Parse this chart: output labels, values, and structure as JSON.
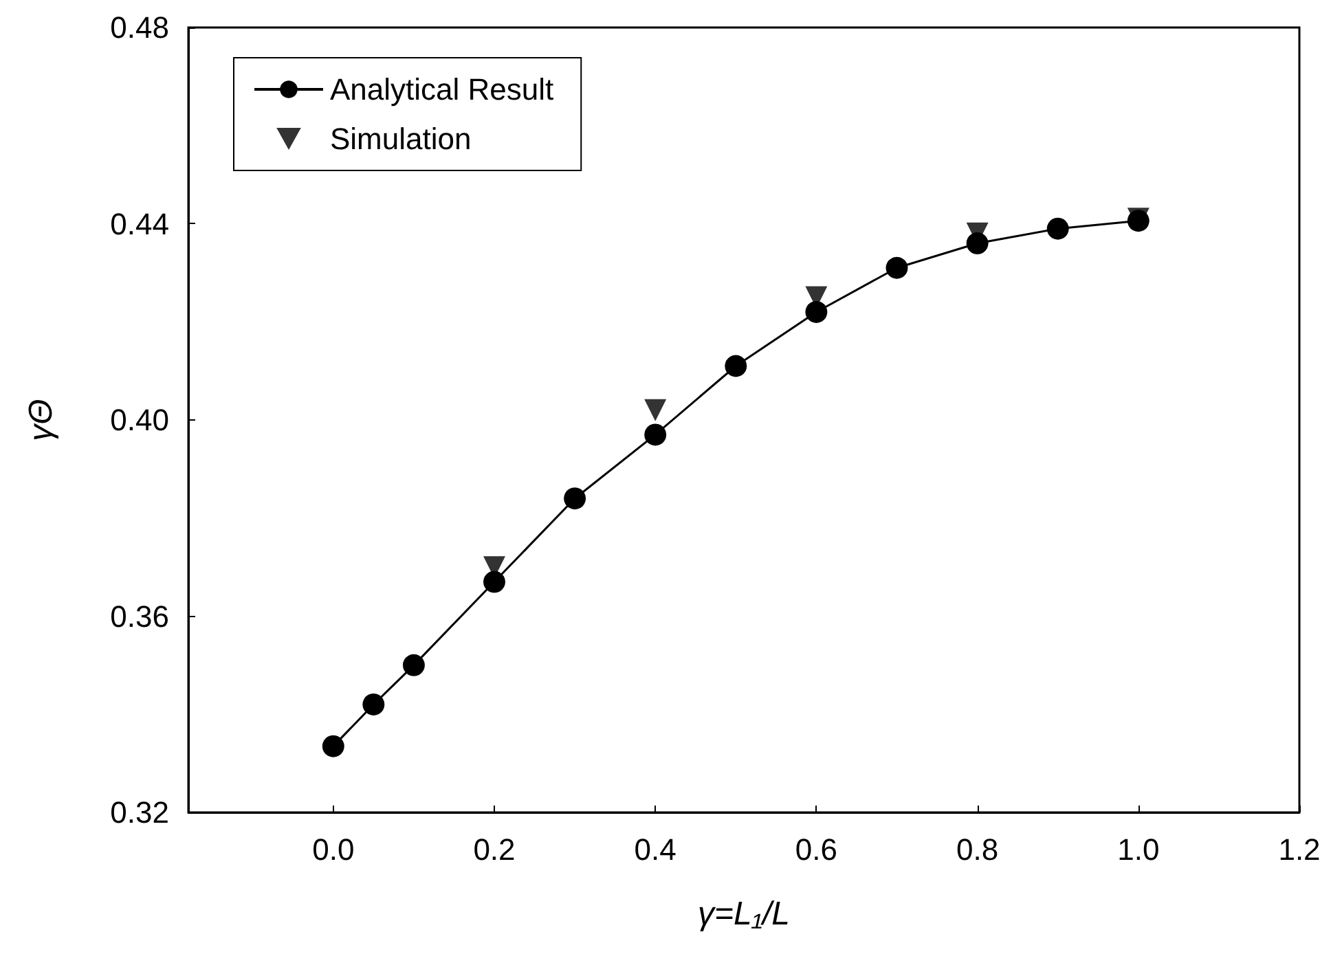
{
  "chart_data": {
    "type": "line",
    "xlabel": "γ=L₁/L",
    "ylabel": "γΘ",
    "xlim": [
      -0.18,
      1.2
    ],
    "xticks": [
      {
        "value": 0,
        "label": "0.0"
      },
      0.2,
      0.4,
      0.6,
      0.8,
      {
        "value": 1,
        "label": "1.0"
      },
      1.2
    ],
    "ylim": [
      0.32,
      0.48
    ],
    "yticks": [
      0.32,
      0.36,
      {
        "value": 0.4,
        "label": "0.40"
      },
      0.44,
      0.48
    ],
    "grid": false,
    "legend": "top left",
    "series": [
      {
        "name": "Analytical Result",
        "type": "line",
        "marker": "circle",
        "line_style": "solid",
        "color": "#000000",
        "x": [
          0,
          0.05,
          0.1,
          0.2,
          0.3,
          0.4,
          0.5,
          0.6,
          0.7,
          0.8,
          0.9,
          1.0
        ],
        "values": [
          0.3335,
          0.342,
          0.35,
          0.367,
          0.384,
          0.397,
          0.411,
          0.422,
          0.431,
          0.436,
          0.439,
          0.4406
        ]
      },
      {
        "name": "Simulation",
        "type": "scatter",
        "marker": "triangle",
        "color": "#000000",
        "x": [
          0.2,
          0.4,
          0.6,
          0.8,
          1.0
        ],
        "values": [
          0.37,
          0.402,
          0.425,
          0.438,
          0.441
        ]
      }
    ]
  }
}
